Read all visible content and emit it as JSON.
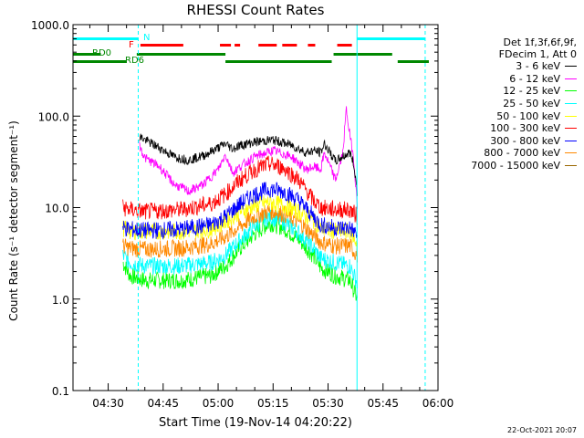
{
  "chart_data": {
    "type": "line",
    "title": "RHESSI Count Rates",
    "xlabel": "Start Time (19-Nov-14 04:20:22)",
    "ylabel": "Count Rate (s⁻¹ detector segment⁻¹)",
    "yscale": "log",
    "ylim": [
      0.1,
      1000
    ],
    "xlim_minutes": [
      20.4,
      60
    ],
    "x_unit": "minutes after 04:00 UT",
    "xticks": [
      {
        "label": "04:30",
        "value": 30
      },
      {
        "label": "04:45",
        "value": 45
      },
      {
        "label": "05:00",
        "value": 60
      },
      {
        "label": "05:15",
        "value": 75
      },
      {
        "label": "05:30",
        "value": 90
      },
      {
        "label": "05:45",
        "value": 105
      },
      {
        "label": "06:00",
        "value": 120
      }
    ],
    "xlim": [
      20.4,
      120
    ],
    "yticks": [
      {
        "label": "0.1",
        "value": 0.1
      },
      {
        "label": "1.0",
        "value": 1
      },
      {
        "label": "10.0",
        "value": 10
      },
      {
        "label": "100.0",
        "value": 100
      },
      {
        "label": "1000.0",
        "value": 1000
      }
    ],
    "grid": false,
    "legend_position": "right",
    "legend_header": [
      "Det 1f,3f,6f,9f,",
      "FDecim 1, Att 0"
    ],
    "series": [
      {
        "name": "3 - 6 keV",
        "color": "#000000",
        "x": [
          38.5,
          40,
          44,
          48,
          52,
          56,
          60,
          62,
          64,
          66,
          70,
          75,
          80,
          84,
          86,
          88,
          89,
          92,
          94,
          96,
          97,
          98
        ],
        "y": [
          60,
          55,
          45,
          36,
          33,
          37,
          45,
          50,
          44,
          48,
          52,
          55,
          48,
          40,
          42,
          40,
          50,
          32,
          36,
          40,
          30,
          15
        ]
      },
      {
        "name": "6 - 12 keV",
        "color": "#ff00ff",
        "x": [
          38.5,
          40,
          44,
          48,
          52,
          56,
          60,
          62,
          64,
          66,
          70,
          75,
          80,
          84,
          86,
          88,
          89,
          92,
          94,
          95,
          96,
          97,
          98
        ],
        "y": [
          48,
          35,
          28,
          18,
          15,
          18,
          26,
          38,
          24,
          28,
          36,
          42,
          36,
          26,
          28,
          26,
          40,
          20,
          38,
          120,
          60,
          35,
          10
        ]
      },
      {
        "name": "12 - 25 keV",
        "color": "#00ff00",
        "x": [
          34,
          36,
          40,
          50,
          58,
          62,
          66,
          70,
          74,
          78,
          82,
          86,
          88,
          92,
          96,
          98
        ],
        "y": [
          2.5,
          1.8,
          1.6,
          1.6,
          1.8,
          2.3,
          3.6,
          5.2,
          6.8,
          6.0,
          4.5,
          3.0,
          2.2,
          1.8,
          1.6,
          1.0
        ]
      },
      {
        "name": "25 - 50 keV",
        "color": "#00ffff",
        "x": [
          34,
          36,
          40,
          50,
          58,
          62,
          66,
          70,
          74,
          78,
          82,
          86,
          88,
          92,
          96,
          98
        ],
        "y": [
          3.0,
          2.5,
          2.3,
          2.3,
          2.5,
          3.0,
          4.4,
          6.3,
          8.0,
          7.0,
          5.3,
          3.6,
          2.8,
          2.5,
          2.3,
          1.5
        ]
      },
      {
        "name": "50 - 100 keV",
        "color": "#ffff00",
        "x": [
          34,
          36,
          40,
          50,
          58,
          62,
          66,
          70,
          74,
          78,
          82,
          86,
          88,
          92,
          96,
          98
        ],
        "y": [
          6.0,
          5.5,
          5.5,
          5.5,
          5.8,
          7.0,
          9.0,
          10.5,
          11.5,
          10.5,
          9.0,
          7.2,
          6.0,
          5.5,
          5.5,
          4.0
        ]
      },
      {
        "name": "100 - 300 keV",
        "color": "#ff0000",
        "x": [
          34,
          36,
          40,
          50,
          58,
          62,
          66,
          70,
          74,
          78,
          82,
          86,
          88,
          92,
          96,
          98
        ],
        "y": [
          10.0,
          9.5,
          9.0,
          9.5,
          11.0,
          14.0,
          20.0,
          26.0,
          30.0,
          27.0,
          20.0,
          12.0,
          10.0,
          9.5,
          9.5,
          8.0
        ]
      },
      {
        "name": "300 - 800 keV",
        "color": "#0000ff",
        "x": [
          34,
          36,
          40,
          50,
          58,
          62,
          66,
          70,
          74,
          78,
          82,
          86,
          88,
          92,
          96,
          98
        ],
        "y": [
          6.0,
          5.8,
          5.6,
          5.8,
          6.5,
          8.0,
          11.0,
          14.0,
          16.0,
          15.0,
          12.0,
          8.0,
          6.5,
          6.0,
          6.0,
          5.0
        ]
      },
      {
        "name": "800 - 7000 keV",
        "color": "#ff8800",
        "x": [
          34,
          36,
          40,
          50,
          58,
          62,
          66,
          70,
          74,
          78,
          82,
          86,
          88,
          92,
          96,
          98
        ],
        "y": [
          3.8,
          3.6,
          3.5,
          3.6,
          4.0,
          4.8,
          6.3,
          8.0,
          9.2,
          8.5,
          7.0,
          5.0,
          4.2,
          3.8,
          3.8,
          3.0
        ]
      },
      {
        "name": "7000 - 15000 keV",
        "color": "#996600",
        "x": [],
        "y": []
      }
    ],
    "annotations": {
      "cyan_solid_lines_minutes": [
        20.4,
        97.9
      ],
      "cyan_dashed_lines_minutes": [
        38.2,
        116.5
      ],
      "night_label": "N",
      "flare_label": "F",
      "rd_labels": [
        "RD0",
        "RD6"
      ]
    },
    "status_bars": {
      "night_cyan": [
        [
          20.4,
          38.2
        ],
        [
          97.9,
          116.5
        ]
      ],
      "flare_red": [
        [
          38.8,
          50.5
        ],
        [
          60.5,
          63.5
        ],
        [
          64.5,
          66.0
        ],
        [
          71.0,
          76.0
        ],
        [
          77.5,
          81.5
        ],
        [
          84.5,
          86.5
        ],
        [
          92.5,
          96.5
        ]
      ],
      "rd0_green": [
        [
          20.4,
          28.0
        ],
        [
          37.8,
          62.0
        ],
        [
          91.5,
          107.5
        ]
      ],
      "rd6_green": [
        [
          20.4,
          35.0
        ],
        [
          62.0,
          91.0
        ],
        [
          109.0,
          117.5
        ]
      ]
    }
  },
  "footer_stamp": "22-Oct-2021 20:07"
}
